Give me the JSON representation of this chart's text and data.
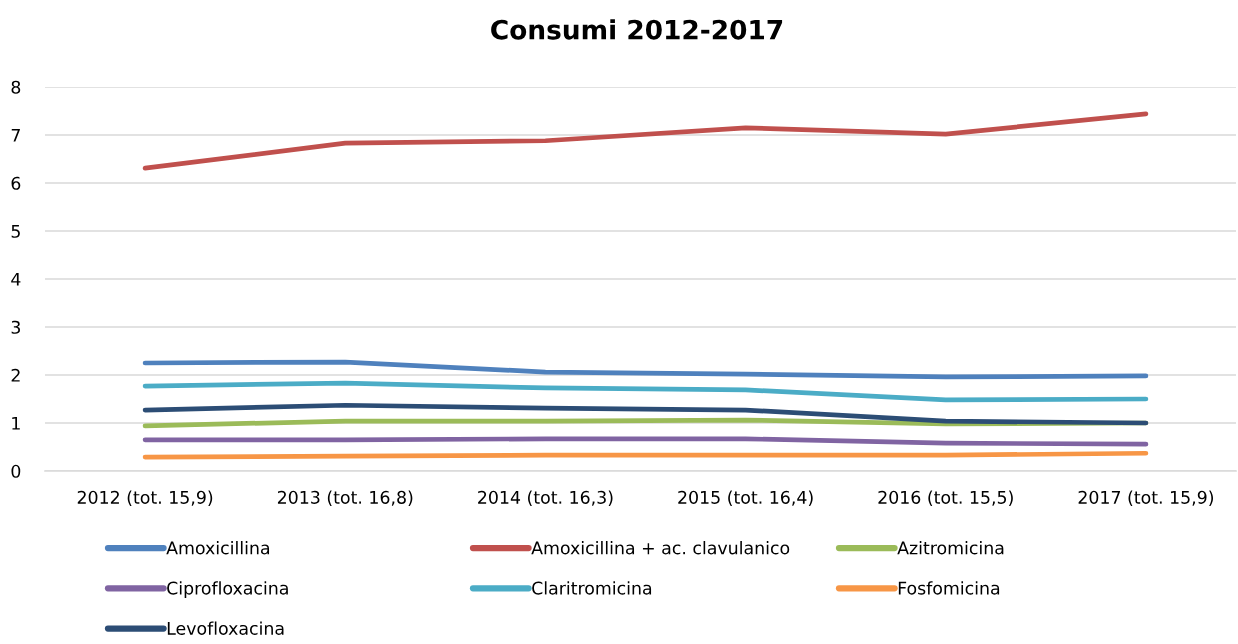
{
  "chart_data": {
    "type": "line",
    "title": "Consumi 2012-2017",
    "categories": [
      "2012 (tot. 15,9)",
      "2013 (tot. 16,8)",
      "2014 (tot. 16,3)",
      "2015 (tot. 16,4)",
      "2016 (tot. 15,5)",
      "2017 (tot. 15,9)"
    ],
    "ylim": [
      0,
      8
    ],
    "yticks": [
      0,
      1,
      2,
      3,
      4,
      5,
      6,
      7,
      8
    ],
    "grid": "y",
    "legend": "bottom",
    "series": [
      {
        "name": "Amoxicillina",
        "color": "#4f81bd",
        "values": [
          2.25,
          2.27,
          2.06,
          2.02,
          1.96,
          1.98
        ]
      },
      {
        "name": "Amoxicillina + ac. clavulanico",
        "color": "#c0504d",
        "values": [
          6.31,
          6.83,
          6.88,
          7.15,
          7.02,
          7.44
        ]
      },
      {
        "name": "Azitromicina",
        "color": "#9bbb59",
        "values": [
          0.94,
          1.04,
          1.04,
          1.06,
          0.98,
          1.0
        ]
      },
      {
        "name": "Ciprofloxacina",
        "color": "#8064a2",
        "values": [
          0.65,
          0.65,
          0.67,
          0.67,
          0.58,
          0.56
        ]
      },
      {
        "name": "Claritromicina",
        "color": "#4bacc6",
        "values": [
          1.77,
          1.83,
          1.73,
          1.69,
          1.48,
          1.5
        ]
      },
      {
        "name": "Fosfomicina",
        "color": "#f79646",
        "values": [
          0.29,
          0.31,
          0.33,
          0.33,
          0.33,
          0.37
        ]
      },
      {
        "name": "Levofloxacina",
        "color": "#2c4d75",
        "values": [
          1.27,
          1.37,
          1.31,
          1.27,
          1.04,
          1.0
        ]
      }
    ]
  }
}
